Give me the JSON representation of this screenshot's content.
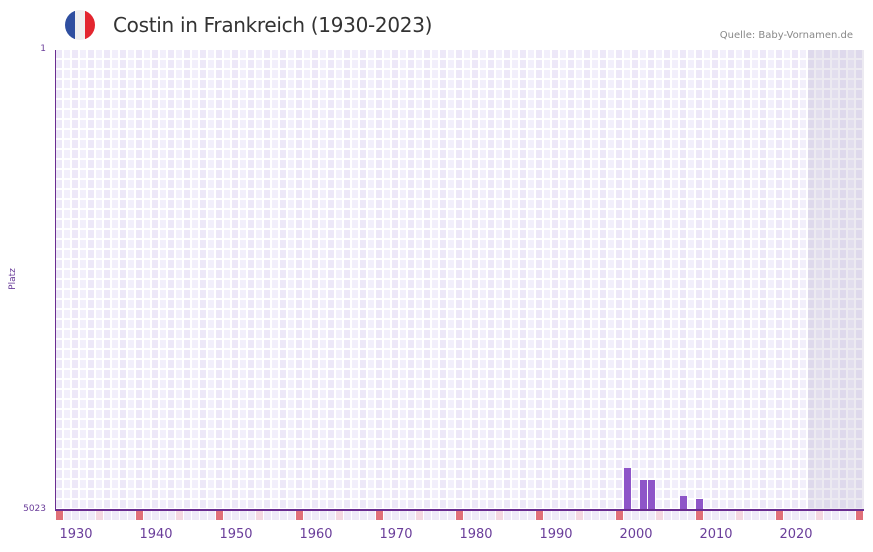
{
  "header": {
    "title": "Costin in Frankreich (1930-2023)",
    "source": "Quelle: Baby-Vornamen.de",
    "flag_colors": [
      "#2f4fa0",
      "#f0f0f0",
      "#e3262f"
    ]
  },
  "axis": {
    "y_top_label": "1",
    "y_bottom_label": "5023",
    "y_title": "Platz"
  },
  "chart_data": {
    "type": "bar",
    "title": "Costin in Frankreich (1930-2023)",
    "xlabel": "",
    "ylabel": "Platz",
    "ylim": [
      5023,
      1
    ],
    "y_inverted": true,
    "x_range": [
      1928,
      2028
    ],
    "x_ticks": [
      1930,
      1940,
      1950,
      1960,
      1970,
      1980,
      1990,
      2000,
      2010,
      2020
    ],
    "shaded_region": [
      2022,
      2028
    ],
    "grid": true,
    "series": [
      {
        "name": "Costin",
        "color": "#8e55c8",
        "points": [
          {
            "year": 1999,
            "rank": 4564
          },
          {
            "year": 2001,
            "rank": 4695
          },
          {
            "year": 2002,
            "rank": 4695
          },
          {
            "year": 2006,
            "rank": 4870
          },
          {
            "year": 2008,
            "rank": 4903
          }
        ]
      }
    ]
  },
  "x_tick_labels": [
    "1930",
    "1940",
    "1950",
    "1960",
    "1970",
    "1980",
    "1990",
    "2000",
    "2010",
    "2020"
  ],
  "colors": {
    "axis": "#6a2d91",
    "bar": "#8e55c8",
    "decade_marker": "#e07079",
    "half_decade_marker": "#f4d8e1"
  }
}
